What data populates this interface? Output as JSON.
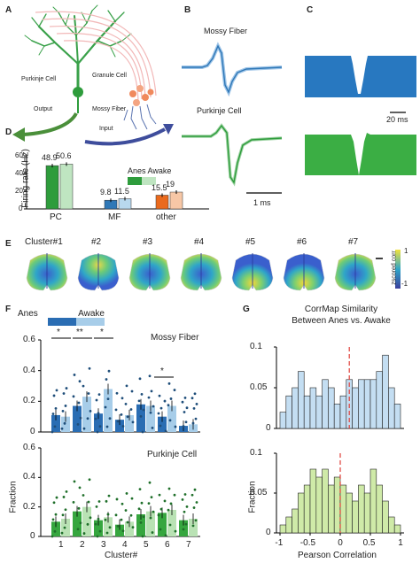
{
  "panels": {
    "A": "A",
    "B": "B",
    "C": "C",
    "D": "D",
    "E": "E",
    "F": "F",
    "G": "G"
  },
  "panelA": {
    "purkinje": "Purkinje Cell",
    "granule": "Granule Cell",
    "output": "Output",
    "mossy": "Mossy Fiber",
    "input": "Input"
  },
  "panelB": {
    "mossy": "Mossy Fiber",
    "purkinje": "Purkinje Cell",
    "scale": "1 ms"
  },
  "panelC": {
    "scale": "20 ms"
  },
  "panelD": {
    "ylabel": "Firing rate (Hz)",
    "legend_title": "Anes Awake",
    "colors": {
      "pc_anes": "#2e9c3c",
      "pc_awake": "#bfe5c1",
      "mf_anes": "#2f78b7",
      "mf_awake": "#b8d8ee",
      "other_anes": "#ea6a1d",
      "other_awake": "#f7c7a6"
    }
  },
  "panelE": {
    "clusters": [
      "Cluster#1",
      "#2",
      "#3",
      "#4",
      "#5",
      "#6",
      "#7"
    ],
    "cbar_label": "zscored corr",
    "cbar_ticks": [
      "1",
      "-1"
    ]
  },
  "panelF": {
    "legend": {
      "anes": "Anes",
      "awake": "Awake"
    },
    "top_title": "Mossy Fiber",
    "bottom_title": "Purkinje Cell",
    "ylabel": "Fraction",
    "xlabel": "Cluster#",
    "sig": [
      "*",
      "**",
      "*",
      "*"
    ]
  },
  "panelG": {
    "title_line1": "CorrMap Similarity",
    "title_line2": "Between Anes vs. Awake",
    "ylabel": "Fraction",
    "xlabel": "Pearson Correlation"
  },
  "chart_data": [
    {
      "id": "D",
      "type": "bar",
      "categories": [
        "PC",
        "MF",
        "other"
      ],
      "series": [
        {
          "name": "Anes",
          "values": [
            48.9,
            9.8,
            15.5
          ]
        },
        {
          "name": "Awake",
          "values": [
            50.6,
            11.5,
            19
          ]
        }
      ],
      "value_labels": [
        [
          "48.9",
          "50.6"
        ],
        [
          "9.8",
          "11.5"
        ],
        [
          "15.5",
          "19"
        ]
      ],
      "ylabel": "Firing rate (Hz)",
      "ylim": [
        0,
        60
      ],
      "yticks": [
        "0",
        "20",
        "40",
        "60"
      ]
    },
    {
      "id": "F_top",
      "type": "bar",
      "title": "Mossy Fiber",
      "categories": [
        "1",
        "2",
        "3",
        "4",
        "5",
        "6",
        "7"
      ],
      "series": [
        {
          "name": "Anes",
          "values": [
            0.11,
            0.17,
            0.12,
            0.08,
            0.18,
            0.1,
            0.04
          ]
        },
        {
          "name": "Awake",
          "values": [
            0.1,
            0.23,
            0.28,
            0.11,
            0.17,
            0.17,
            0.05
          ]
        }
      ],
      "ylim": [
        0,
        0.6
      ],
      "yticks": [
        "0",
        "0.2",
        "0.4",
        "0.6"
      ]
    },
    {
      "id": "F_bottom",
      "type": "bar",
      "title": "Purkinje Cell",
      "categories": [
        "1",
        "2",
        "3",
        "4",
        "5",
        "6",
        "7"
      ],
      "series": [
        {
          "name": "Anes",
          "values": [
            0.1,
            0.17,
            0.11,
            0.08,
            0.15,
            0.16,
            0.11
          ]
        },
        {
          "name": "Awake",
          "values": [
            0.12,
            0.2,
            0.13,
            0.1,
            0.17,
            0.18,
            0.12
          ]
        }
      ],
      "xlabel": "Cluster#",
      "ylabel": "Fraction",
      "ylim": [
        0,
        0.6
      ],
      "yticks": [
        "0",
        "0.2",
        "0.4",
        "0.6"
      ]
    },
    {
      "id": "G_top",
      "type": "bar",
      "title": "CorrMap Similarity Between Anes vs. Awake",
      "x": [
        -0.95,
        -0.85,
        -0.75,
        -0.65,
        -0.55,
        -0.45,
        -0.35,
        -0.25,
        -0.15,
        -0.05,
        0.05,
        0.15,
        0.25,
        0.35,
        0.45,
        0.55,
        0.65,
        0.75,
        0.85,
        0.95
      ],
      "values": [
        0.02,
        0.04,
        0.05,
        0.07,
        0.04,
        0.05,
        0.04,
        0.06,
        0.05,
        0.03,
        0.04,
        0.06,
        0.05,
        0.06,
        0.06,
        0.06,
        0.07,
        0.09,
        0.05,
        0.03
      ],
      "ylim": [
        0,
        0.1
      ],
      "yticks": [
        "0",
        "0.05",
        "0.1"
      ],
      "reference_line_x": 0.15
    },
    {
      "id": "G_bottom",
      "type": "bar",
      "x": [
        -0.95,
        -0.85,
        -0.75,
        -0.65,
        -0.55,
        -0.45,
        -0.35,
        -0.25,
        -0.15,
        -0.05,
        0.05,
        0.15,
        0.25,
        0.35,
        0.45,
        0.55,
        0.65,
        0.75,
        0.85,
        0.95
      ],
      "values": [
        0.01,
        0.02,
        0.03,
        0.05,
        0.06,
        0.08,
        0.07,
        0.08,
        0.06,
        0.07,
        0.06,
        0.05,
        0.04,
        0.06,
        0.05,
        0.08,
        0.06,
        0.04,
        0.02,
        0.01
      ],
      "xlabel": "Pearson Correlation",
      "ylabel": "Fraction",
      "ylim": [
        0,
        0.1
      ],
      "yticks": [
        "0",
        "0.05",
        "0.1"
      ],
      "xticks": [
        "-1",
        "-0.5",
        "0",
        "0.5",
        "1"
      ],
      "reference_line_x": 0.0
    }
  ]
}
